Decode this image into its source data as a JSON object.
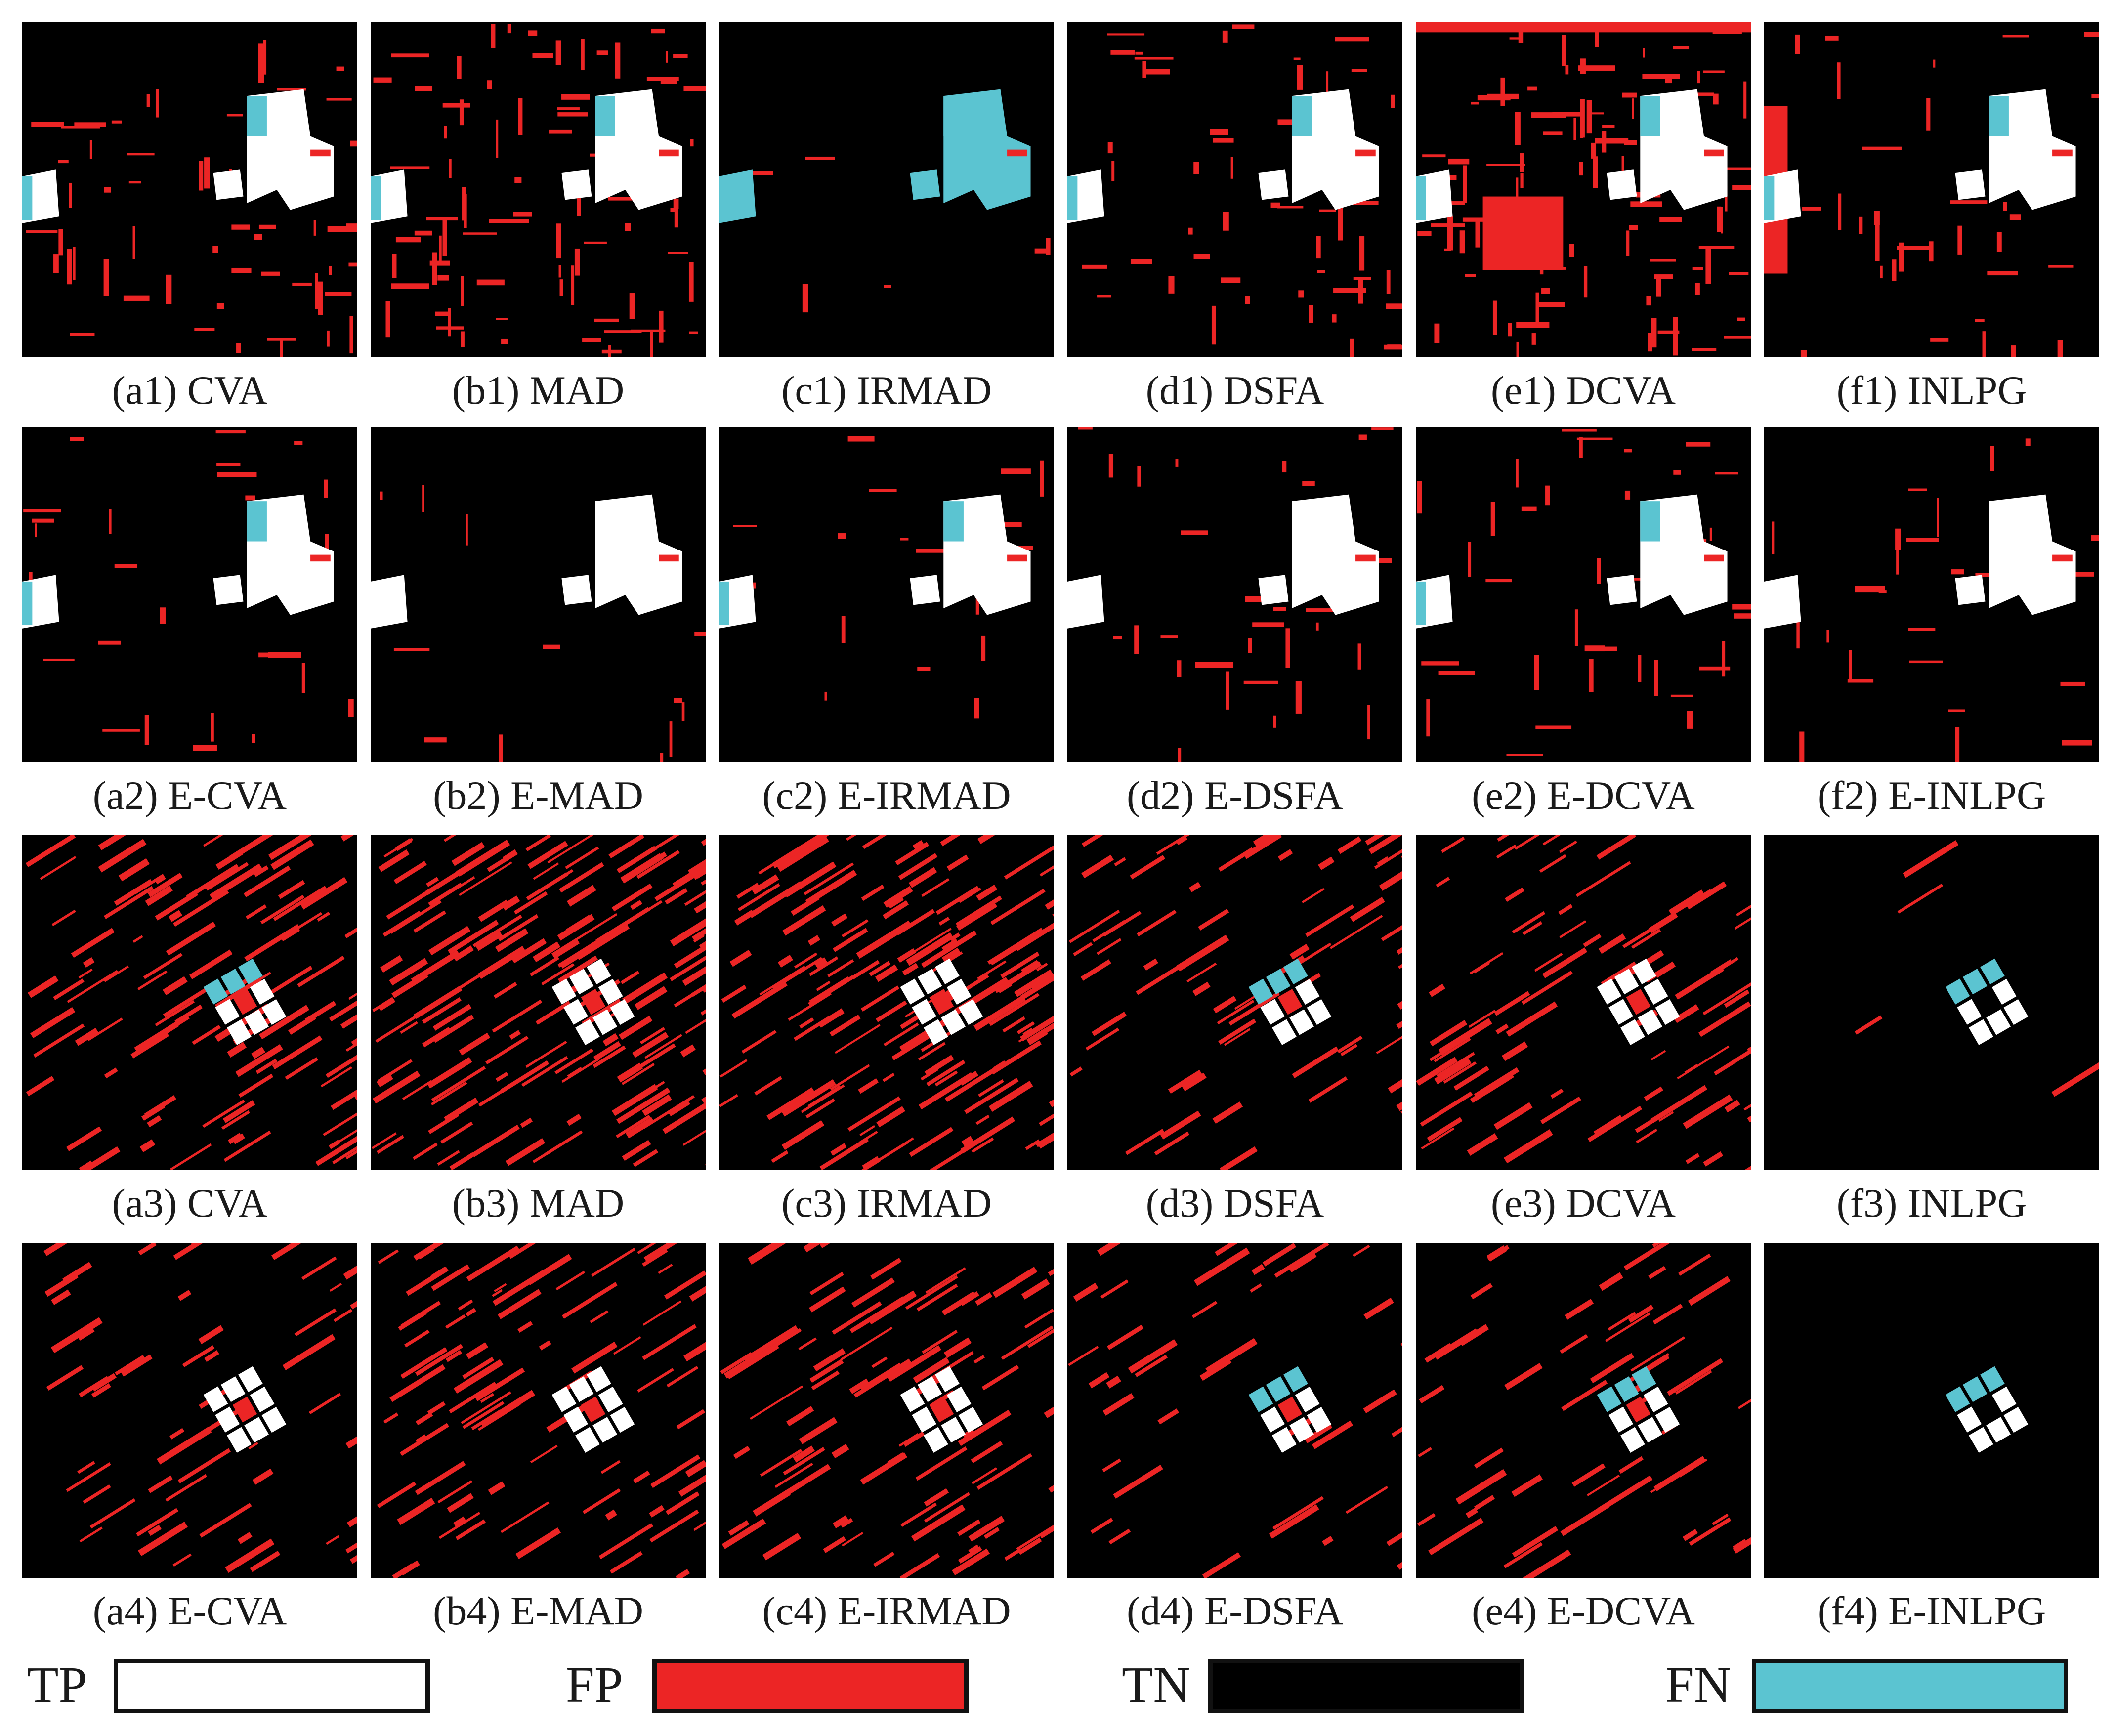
{
  "colors": {
    "TP": "#ffffff",
    "FP": "#ec2525",
    "TN": "#000000",
    "FN": "#5bc4d1",
    "border": "#111111"
  },
  "panels": [
    {
      "caption": "(a1) CVA",
      "row": 1,
      "col": 1
    },
    {
      "caption": "(b1) MAD",
      "row": 1,
      "col": 2
    },
    {
      "caption": "(c1) IRMAD",
      "row": 1,
      "col": 3
    },
    {
      "caption": "(d1) DSFA",
      "row": 1,
      "col": 4
    },
    {
      "caption": "(e1) DCVA",
      "row": 1,
      "col": 5
    },
    {
      "caption": "(f1) INLPG",
      "row": 1,
      "col": 6
    },
    {
      "caption": "(a2) E-CVA",
      "row": 2,
      "col": 1
    },
    {
      "caption": "(b2) E-MAD",
      "row": 2,
      "col": 2
    },
    {
      "caption": "(c2) E-IRMAD",
      "row": 2,
      "col": 3
    },
    {
      "caption": "(d2) E-DSFA",
      "row": 2,
      "col": 4
    },
    {
      "caption": "(e2) E-DCVA",
      "row": 2,
      "col": 5
    },
    {
      "caption": "(f2) E-INLPG",
      "row": 2,
      "col": 6
    },
    {
      "caption": "(a3) CVA",
      "row": 3,
      "col": 1
    },
    {
      "caption": "(b3) MAD",
      "row": 3,
      "col": 2
    },
    {
      "caption": "(c3) IRMAD",
      "row": 3,
      "col": 3
    },
    {
      "caption": "(d3) DSFA",
      "row": 3,
      "col": 4
    },
    {
      "caption": "(e3) DCVA",
      "row": 3,
      "col": 5
    },
    {
      "caption": "(f3) INLPG",
      "row": 3,
      "col": 6
    },
    {
      "caption": "(a4) E-CVA",
      "row": 4,
      "col": 1
    },
    {
      "caption": "(b4) E-MAD",
      "row": 4,
      "col": 2
    },
    {
      "caption": "(c4) E-IRMAD",
      "row": 4,
      "col": 3
    },
    {
      "caption": "(d4) E-DSFA",
      "row": 4,
      "col": 4
    },
    {
      "caption": "(e4) E-DCVA",
      "row": 4,
      "col": 5
    },
    {
      "caption": "(f4) E-INLPG",
      "row": 4,
      "col": 6
    }
  ],
  "legend": [
    {
      "label": "TP",
      "color_key": "TP"
    },
    {
      "label": "FP",
      "color_key": "FP"
    },
    {
      "label": "TN",
      "color_key": "TN"
    },
    {
      "label": "FN",
      "color_key": "FN"
    }
  ]
}
